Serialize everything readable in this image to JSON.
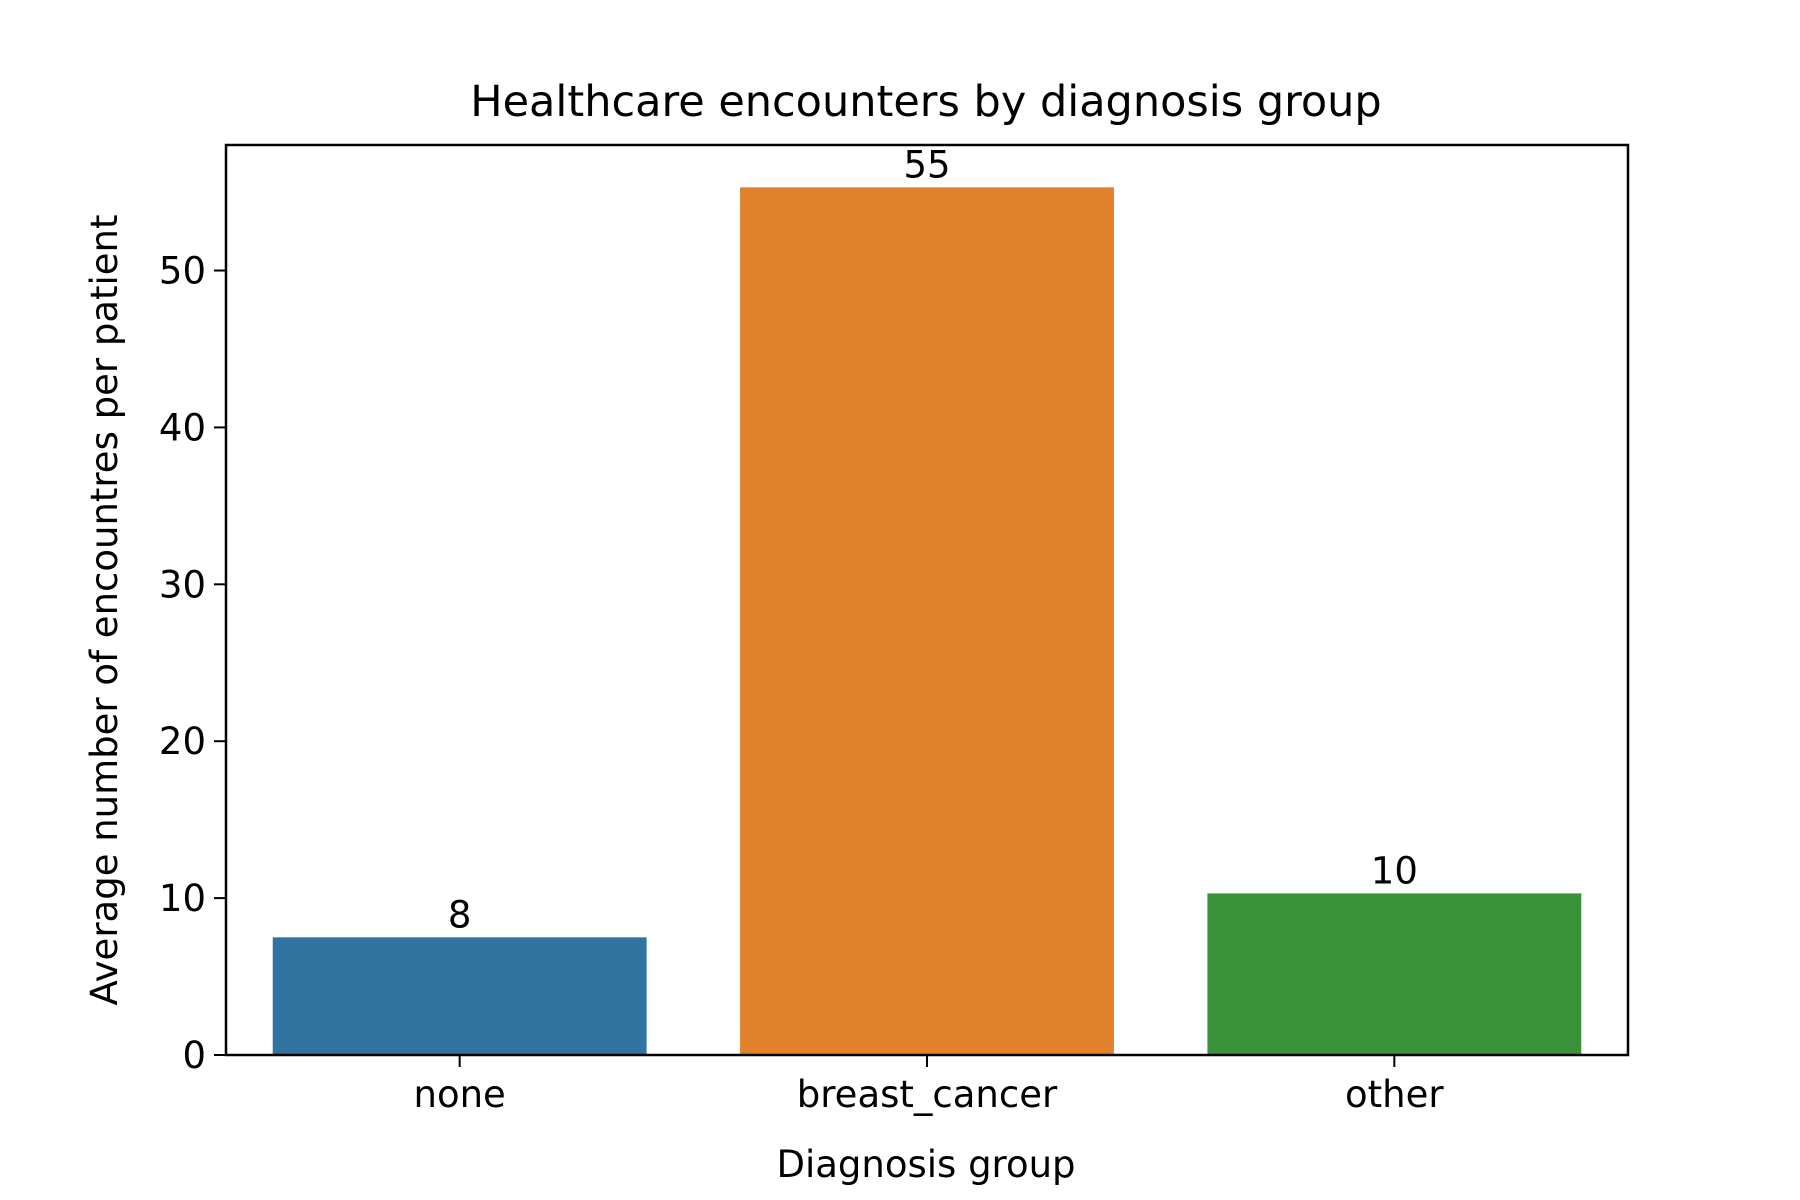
{
  "chart_data": {
    "type": "bar",
    "title": "Healthcare encounters by diagnosis group",
    "xlabel": "Diagnosis group",
    "ylabel": "Average number of encountres per patient",
    "categories": [
      "none",
      "breast_cancer",
      "other"
    ],
    "values": [
      7.5,
      55.3,
      10.3
    ],
    "data_labels": [
      "8",
      "55",
      "10"
    ],
    "colors": [
      "#3274a1",
      "#e1812c",
      "#3a923a"
    ],
    "ylim": [
      0,
      58
    ],
    "yticks": [
      0,
      10,
      20,
      30,
      40,
      50
    ],
    "ytick_labels": [
      "0",
      "10",
      "20",
      "30",
      "40",
      "50"
    ],
    "grid": false,
    "legend": "none"
  }
}
